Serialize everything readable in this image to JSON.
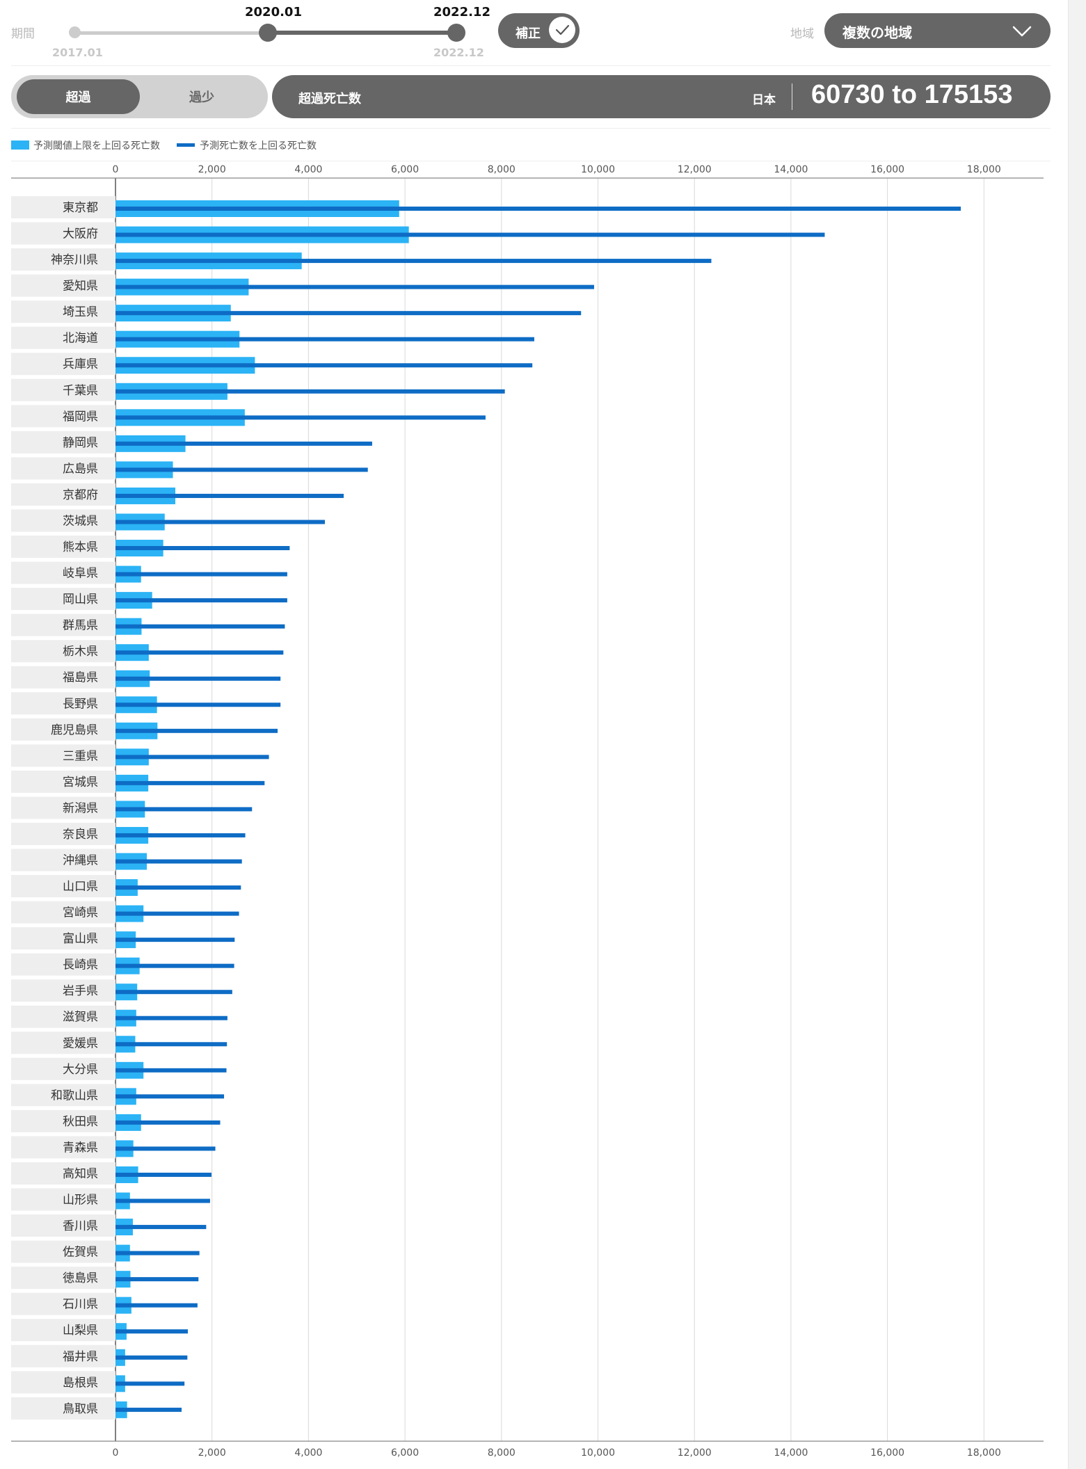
{
  "controls": {
    "period_label": "期間",
    "period_min": "2017.01",
    "period_max": "2022.12",
    "selected_start": "2020.01",
    "selected_end": "2022.12",
    "adjust_label": "補正",
    "adjust_checked": true,
    "region_label": "地域",
    "region_value": "複数の地域",
    "toggle_on": "超過",
    "toggle_off": "過少"
  },
  "summary": {
    "title": "超過死亡数",
    "country": "日本",
    "range": "60730 to 175153"
  },
  "colors": {
    "threshold": "#2bb3f5",
    "predicted": "#0e6cc5",
    "panel": "#666666"
  },
  "chart_data": {
    "type": "bar",
    "orientation": "horizontal",
    "xlim": [
      0,
      19000
    ],
    "ticks": [
      0,
      2000,
      4000,
      6000,
      8000,
      10000,
      12000,
      14000,
      16000,
      18000
    ],
    "tick_labels": [
      "0",
      "2,000",
      "4,000",
      "6,000",
      "8,000",
      "10,000",
      "12,000",
      "14,000",
      "16,000",
      "18,000"
    ],
    "grid": true,
    "legend_position": "top-left",
    "categories": [
      "東京都",
      "大阪府",
      "神奈川県",
      "愛知県",
      "埼玉県",
      "北海道",
      "兵庫県",
      "千葉県",
      "福岡県",
      "静岡県",
      "広島県",
      "京都府",
      "茨城県",
      "熊本県",
      "岐阜県",
      "岡山県",
      "群馬県",
      "栃木県",
      "福島県",
      "長野県",
      "鹿児島県",
      "三重県",
      "宮城県",
      "新潟県",
      "奈良県",
      "沖縄県",
      "山口県",
      "宮崎県",
      "富山県",
      "長崎県",
      "岩手県",
      "滋賀県",
      "愛媛県",
      "大分県",
      "和歌山県",
      "秋田県",
      "青森県",
      "高知県",
      "山形県",
      "香川県",
      "佐賀県",
      "徳島県",
      "石川県",
      "山梨県",
      "福井県",
      "島根県",
      "鳥取県"
    ],
    "series": [
      {
        "name": "予測閾値上限を上回る死亡数",
        "values": [
          5880,
          6080,
          3860,
          2760,
          2390,
          2570,
          2890,
          2320,
          2680,
          1450,
          1190,
          1240,
          1020,
          990,
          530,
          760,
          540,
          690,
          710,
          860,
          870,
          690,
          680,
          610,
          680,
          650,
          460,
          580,
          420,
          500,
          450,
          430,
          410,
          580,
          430,
          530,
          370,
          470,
          300,
          360,
          300,
          310,
          330,
          230,
          200,
          200,
          240
        ]
      },
      {
        "name": "予測死亡数を上回る死亡数",
        "values": [
          17520,
          14700,
          12350,
          9920,
          9650,
          8680,
          8640,
          8070,
          7670,
          5320,
          5230,
          4730,
          4340,
          3610,
          3560,
          3560,
          3510,
          3480,
          3420,
          3420,
          3360,
          3180,
          3090,
          2830,
          2690,
          2620,
          2600,
          2560,
          2470,
          2460,
          2420,
          2320,
          2310,
          2300,
          2250,
          2170,
          2070,
          1990,
          1960,
          1880,
          1740,
          1720,
          1700,
          1500,
          1490,
          1430,
          1370
        ]
      }
    ]
  }
}
